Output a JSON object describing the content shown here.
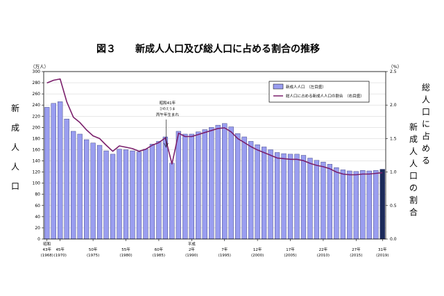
{
  "chart_data": {
    "type": "bar",
    "title": "図３　　新成人人口及び総人口に占める割合の推移",
    "left_axis": {
      "unit": "（万人）",
      "label": [
        "新",
        "成",
        "人",
        "人",
        "口"
      ],
      "ylim": [
        0,
        300
      ],
      "ticks": [
        0,
        20,
        40,
        60,
        80,
        100,
        120,
        140,
        160,
        180,
        200,
        220,
        240,
        260,
        280,
        300
      ]
    },
    "right_axis": {
      "unit": "（%）",
      "label_lines": [
        [
          "総",
          "人",
          "口",
          "に",
          "占",
          "め",
          "る"
        ],
        [
          "新",
          "成",
          "人",
          "人",
          "口",
          "の",
          "割",
          "合"
        ]
      ],
      "ylim": [
        0,
        2.5
      ],
      "ticks": [
        "0.0",
        "0.5",
        "1.0",
        "1.5",
        "2.0",
        "2.5"
      ]
    },
    "x": [
      1968,
      1969,
      1970,
      1971,
      1972,
      1973,
      1974,
      1975,
      1976,
      1977,
      1978,
      1979,
      1980,
      1981,
      1982,
      1983,
      1984,
      1985,
      1986,
      1987,
      1988,
      1989,
      1990,
      1991,
      1992,
      1993,
      1994,
      1995,
      1996,
      1997,
      1998,
      1999,
      2000,
      2001,
      2002,
      2003,
      2004,
      2005,
      2006,
      2007,
      2008,
      2009,
      2010,
      2011,
      2012,
      2013,
      2014,
      2015,
      2016,
      2017,
      2018,
      2019
    ],
    "x_tick_labels": [
      {
        "year": 1968,
        "era": "昭和",
        "label": "43年",
        "western": "(1968)"
      },
      {
        "year": 1970,
        "label": "45年",
        "western": "(1970)"
      },
      {
        "year": 1975,
        "label": "50年",
        "western": "(1975)"
      },
      {
        "year": 1980,
        "label": "55年",
        "western": "(1980)"
      },
      {
        "year": 1985,
        "label": "60年",
        "western": "(1985)"
      },
      {
        "year": 1990,
        "era": "平成",
        "label": "2年",
        "western": "(1990)"
      },
      {
        "year": 1995,
        "label": "7年",
        "western": "(1995)"
      },
      {
        "year": 2000,
        "label": "12年",
        "western": "(2000)"
      },
      {
        "year": 2005,
        "label": "17年",
        "western": "(2005)"
      },
      {
        "year": 2010,
        "label": "22年",
        "western": "(2010)"
      },
      {
        "year": 2015,
        "label": "27年",
        "western": "(2015)"
      },
      {
        "year": 2019,
        "label": "31年",
        "western": "(2019)"
      }
    ],
    "series": [
      {
        "name": "新成人人口　（左目盛）",
        "type": "bar",
        "axis": "left",
        "color": "#9a9ef0",
        "highlight_color": "#1b2a5a",
        "values": [
          236,
          243,
          246,
          215,
          193,
          188,
          178,
          172,
          168,
          158,
          152,
          161,
          160,
          158,
          156,
          161,
          170,
          175,
          183,
          136,
          193,
          188,
          188,
          192,
          196,
          200,
          204,
          207,
          201,
          189,
          183,
          175,
          169,
          165,
          160,
          155,
          153,
          152,
          152,
          150,
          145,
          141,
          138,
          134,
          128,
          124,
          122,
          121,
          123,
          122,
          123,
          125
        ]
      },
      {
        "name": "総人口に占める新成人人口の割合　（右目盛）",
        "type": "line",
        "axis": "right",
        "color": "#7a1f6b",
        "values": [
          2.33,
          2.37,
          2.39,
          2.05,
          1.82,
          1.74,
          1.63,
          1.54,
          1.5,
          1.4,
          1.31,
          1.39,
          1.37,
          1.35,
          1.31,
          1.34,
          1.4,
          1.44,
          1.51,
          1.12,
          1.58,
          1.53,
          1.53,
          1.56,
          1.59,
          1.62,
          1.65,
          1.66,
          1.6,
          1.5,
          1.44,
          1.38,
          1.33,
          1.29,
          1.25,
          1.21,
          1.2,
          1.19,
          1.19,
          1.17,
          1.13,
          1.1,
          1.08,
          1.05,
          1.0,
          0.97,
          0.96,
          0.96,
          0.97,
          0.97,
          0.98,
          0.99
        ]
      }
    ],
    "annotation": {
      "year": 1986,
      "lines": [
        "昭和41年",
        "ひのえうま",
        "丙午年生まれ"
      ]
    },
    "legend_position": "top-right"
  }
}
